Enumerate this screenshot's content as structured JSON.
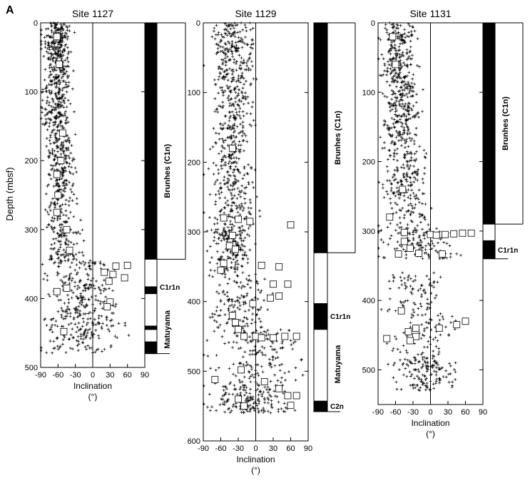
{
  "figure_label": "A",
  "shared_axes": {
    "ylabel": "Depth (mbsf)",
    "xlabel": "Inclination",
    "xunit": "(°)",
    "x_ticks": [
      -90,
      -60,
      -30,
      0,
      30,
      60,
      90
    ]
  },
  "chart_data": [
    {
      "type": "scatter",
      "title": "Site 1127",
      "xlabel": "Inclination",
      "ylabel": "Depth (mbsf)",
      "xlim": [
        -90,
        90
      ],
      "ylim": [
        0,
        500
      ],
      "y_ticks": [
        0,
        100,
        200,
        300,
        400,
        500
      ],
      "series": [
        {
          "marker": "plus",
          "clusters": [
            [
              0,
              45,
              -62,
              14,
              170
            ],
            [
              45,
              95,
              -58,
              14,
              140
            ],
            [
              95,
              150,
              -62,
              16,
              150
            ],
            [
              150,
              260,
              -55,
              15,
              220
            ],
            [
              260,
              300,
              -58,
              18,
              60
            ],
            [
              300,
              345,
              -50,
              18,
              90
            ],
            [
              345,
              400,
              -25,
              35,
              140
            ],
            [
              400,
              480,
              -20,
              40,
              220
            ]
          ]
        },
        {
          "marker": "square",
          "points": [
            [
              -62,
              20
            ],
            [
              -58,
              60
            ],
            [
              -52,
              160
            ],
            [
              -55,
              200
            ],
            [
              -62,
              220
            ],
            [
              -60,
              250
            ],
            [
              -62,
              275
            ],
            [
              -45,
              300
            ],
            [
              -40,
              330
            ],
            [
              40,
              353
            ],
            [
              60,
              352
            ],
            [
              20,
              362
            ],
            [
              35,
              365
            ],
            [
              55,
              370
            ],
            [
              28,
              375
            ],
            [
              -45,
              385
            ],
            [
              -62,
              390
            ],
            [
              30,
              405
            ],
            [
              25,
              412
            ],
            [
              -50,
              448
            ]
          ]
        }
      ],
      "polarity": [
        {
          "from": 0,
          "to": 343,
          "polarity": "normal"
        },
        {
          "from": 343,
          "to": 383,
          "polarity": "reversed"
        },
        {
          "from": 383,
          "to": 393,
          "polarity": "normal"
        },
        {
          "from": 393,
          "to": 440,
          "polarity": "reversed"
        },
        {
          "from": 440,
          "to": 445,
          "polarity": "normal"
        },
        {
          "from": 445,
          "to": 463,
          "polarity": "reversed"
        },
        {
          "from": 463,
          "to": 480,
          "polarity": "normal"
        }
      ],
      "chron_labels": [
        {
          "text": "Brunhes (C1n)",
          "depth": 215
        },
        {
          "text": "C1r1n",
          "depth": 383
        },
        {
          "text": "Matuyama",
          "depth": 445
        }
      ]
    },
    {
      "type": "scatter",
      "title": "Site 1129",
      "xlabel": "Inclination",
      "ylabel": "",
      "xlim": [
        -90,
        90
      ],
      "ylim": [
        0,
        600
      ],
      "y_ticks": [
        0,
        100,
        200,
        300,
        400,
        500,
        600
      ],
      "series": [
        {
          "marker": "plus",
          "clusters": [
            [
              0,
              70,
              -40,
              22,
              180
            ],
            [
              70,
              150,
              -40,
              20,
              160
            ],
            [
              150,
              200,
              -42,
              18,
              100
            ],
            [
              200,
              290,
              -40,
              24,
              180
            ],
            [
              290,
              360,
              -40,
              22,
              180
            ],
            [
              360,
              440,
              -25,
              30,
              140
            ],
            [
              440,
              520,
              0,
              45,
              160
            ],
            [
              520,
              560,
              -10,
              40,
              170
            ]
          ]
        },
        {
          "marker": "square",
          "points": [
            [
              -40,
              180
            ],
            [
              -55,
              280
            ],
            [
              -30,
              282
            ],
            [
              -10,
              285
            ],
            [
              60,
              290
            ],
            [
              -40,
              305
            ],
            [
              -45,
              320
            ],
            [
              -35,
              325
            ],
            [
              -55,
              345
            ],
            [
              10,
              348
            ],
            [
              -60,
              355
            ],
            [
              40,
              350
            ],
            [
              30,
              375
            ],
            [
              55,
              375
            ],
            [
              40,
              392
            ],
            [
              25,
              395
            ],
            [
              -5,
              403
            ],
            [
              -40,
              420
            ],
            [
              -35,
              430
            ],
            [
              -30,
              440
            ],
            [
              -20,
              450
            ],
            [
              0,
              450
            ],
            [
              10,
              452
            ],
            [
              30,
              452
            ],
            [
              50,
              450
            ],
            [
              70,
              450
            ],
            [
              -70,
              512
            ],
            [
              -25,
              498
            ],
            [
              15,
              515
            ],
            [
              40,
              525
            ],
            [
              55,
              535
            ],
            [
              70,
              535
            ],
            [
              -30,
              540
            ],
            [
              -20,
              550
            ],
            [
              60,
              549
            ]
          ]
        }
      ],
      "polarity": [
        {
          "from": 0,
          "to": 330,
          "polarity": "normal"
        },
        {
          "from": 330,
          "to": 403,
          "polarity": "reversed"
        },
        {
          "from": 403,
          "to": 440,
          "polarity": "normal"
        },
        {
          "from": 440,
          "to": 543,
          "polarity": "reversed"
        },
        {
          "from": 543,
          "to": 558,
          "polarity": "normal"
        }
      ],
      "chron_labels": [
        {
          "text": "Brunhes (C1n)",
          "depth": 165
        },
        {
          "text": "C1r1n",
          "depth": 421
        },
        {
          "text": "Matuyama",
          "depth": 490
        },
        {
          "text": "C2n",
          "depth": 550
        }
      ]
    },
    {
      "type": "scatter",
      "title": "Site 1131",
      "xlabel": "Inclination",
      "ylabel": "",
      "xlim": [
        -90,
        90
      ],
      "ylim": [
        0,
        550
      ],
      "y_ticks": [
        0,
        100,
        200,
        300,
        400,
        500
      ],
      "series": [
        {
          "marker": "plus",
          "clusters": [
            [
              0,
              80,
              -55,
              18,
              200
            ],
            [
              80,
              170,
              -50,
              18,
              220
            ],
            [
              170,
              260,
              -45,
              22,
              170
            ],
            [
              260,
              300,
              -35,
              28,
              60
            ],
            [
              300,
              340,
              -20,
              40,
              120
            ],
            [
              360,
              420,
              -30,
              28,
              80
            ],
            [
              420,
              480,
              -10,
              40,
              70
            ],
            [
              480,
              530,
              -10,
              30,
              140
            ]
          ]
        },
        {
          "marker": "square",
          "points": [
            [
              -65,
              20
            ],
            [
              -60,
              60
            ],
            [
              -48,
              240
            ],
            [
              -70,
              280
            ],
            [
              -45,
              302
            ],
            [
              -45,
              315
            ],
            [
              -35,
              325
            ],
            [
              -20,
              332
            ],
            [
              -55,
              333
            ],
            [
              20,
              333
            ],
            [
              0,
              305
            ],
            [
              10,
              306
            ],
            [
              25,
              305
            ],
            [
              40,
              304
            ],
            [
              55,
              303
            ],
            [
              70,
              303
            ],
            [
              -50,
              415
            ],
            [
              -25,
              440
            ],
            [
              -38,
              445
            ],
            [
              -25,
              452
            ],
            [
              -75,
              455
            ],
            [
              -35,
              458
            ],
            [
              15,
              440
            ],
            [
              45,
              435
            ],
            [
              60,
              430
            ]
          ]
        }
      ],
      "polarity": [
        {
          "from": 0,
          "to": 290,
          "polarity": "normal"
        },
        {
          "from": 290,
          "to": 314,
          "polarity": "reversed"
        },
        {
          "from": 314,
          "to": 340,
          "polarity": "normal"
        }
      ],
      "chron_labels": [
        {
          "text": "Brunhes (C1n)",
          "depth": 145
        },
        {
          "text": "C1r1n",
          "depth": 327
        }
      ]
    }
  ]
}
